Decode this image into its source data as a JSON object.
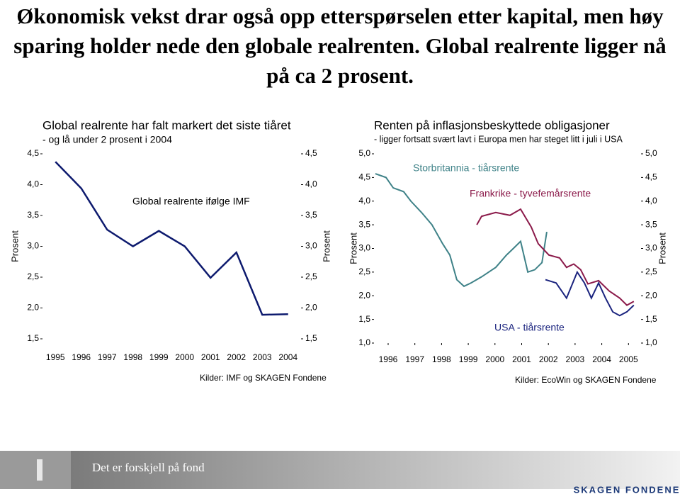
{
  "title": "Økonomisk vekst drar også opp etterspørselen etter kapital, men høy sparing holder nede den globale realrenten. Global realrente ligger nå på ca 2 prosent.",
  "chart_data": [
    {
      "type": "line",
      "title": "Global realrente har falt markert det siste tiåret",
      "subtitle": "- og lå under 2 prosent i 2004",
      "annotation": "Global realrente ifølge IMF",
      "source": "Kilder: IMF og SKAGEN Fondene",
      "ylabel": "Prosent",
      "y2label": "Prosent",
      "categories": [
        "1995",
        "1996",
        "1997",
        "1998",
        "1999",
        "2000",
        "2001",
        "2002",
        "2003",
        "2004"
      ],
      "values": [
        4.37,
        3.94,
        3.27,
        3.0,
        3.25,
        3.0,
        2.49,
        2.9,
        1.89,
        1.9
      ],
      "color": "#0d1a6e",
      "ylim": [
        1.5,
        4.5
      ],
      "yticks": [
        {
          "value": 1.5,
          "label": "1,5"
        },
        {
          "value": 2.0,
          "label": "2,0"
        },
        {
          "value": 2.5,
          "label": "2,5"
        },
        {
          "value": 3.0,
          "label": "3,0"
        },
        {
          "value": 3.5,
          "label": "3,5"
        },
        {
          "value": 4.0,
          "label": "4,0"
        },
        {
          "value": 4.5,
          "label": "4,5"
        }
      ],
      "y2lim": [
        1.5,
        4.5
      ],
      "y2ticks": [
        {
          "value": 1.5,
          "label": "1,5"
        },
        {
          "value": 2.0,
          "label": "2,0"
        },
        {
          "value": 2.5,
          "label": "2,5"
        },
        {
          "value": 3.0,
          "label": "3,0"
        },
        {
          "value": 3.5,
          "label": "3,5"
        },
        {
          "value": 4.0,
          "label": "4,0"
        },
        {
          "value": 4.5,
          "label": "4,5"
        }
      ]
    },
    {
      "type": "line",
      "title": "Renten på inflasjonsbeskyttede obligasjoner",
      "subtitle": "- ligger fortsatt svært lavt i Europa men har steget litt i juli i USA",
      "source": "Kilder: EcoWin og SKAGEN Fondene",
      "ylabel": "Prosent",
      "y2label": "Prosent",
      "xlim": [
        1995.47,
        2005.47
      ],
      "xticks": [
        1996,
        1997,
        1998,
        1999,
        2000,
        2001,
        2002,
        2003,
        2004,
        2005
      ],
      "ylim": [
        1.0,
        5.0
      ],
      "yticks": [
        {
          "value": 1.0,
          "label": "1,0"
        },
        {
          "value": 1.5,
          "label": "1,5"
        },
        {
          "value": 2.0,
          "label": "2,0"
        },
        {
          "value": 2.5,
          "label": "2,5"
        },
        {
          "value": 3.0,
          "label": "3,0"
        },
        {
          "value": 3.5,
          "label": "3,5"
        },
        {
          "value": 4.0,
          "label": "4,0"
        },
        {
          "value": 4.5,
          "label": "4,5"
        },
        {
          "value": 5.0,
          "label": "5,0"
        }
      ],
      "y2lim": [
        1.0,
        5.0
      ],
      "y2ticks": [
        {
          "value": 1.0,
          "label": "1,0"
        },
        {
          "value": 1.5,
          "label": "1,5"
        },
        {
          "value": 2.0,
          "label": "2,0"
        },
        {
          "value": 2.5,
          "label": "2,5"
        },
        {
          "value": 3.0,
          "label": "3,0"
        },
        {
          "value": 3.5,
          "label": "3,5"
        },
        {
          "value": 4.0,
          "label": "4,0"
        },
        {
          "value": 4.5,
          "label": "4,5"
        },
        {
          "value": 5.0,
          "label": "5,0"
        }
      ],
      "series": [
        {
          "name": "Storbritannia - tiårsrente",
          "color": "#3f8288",
          "x": [
            1995.52,
            1995.92,
            1996.19,
            1996.58,
            1996.85,
            1997.25,
            1997.64,
            1998.04,
            1998.31,
            1998.57,
            1998.84,
            1999.1,
            1999.5,
            2000.03,
            2000.43,
            2000.69,
            2000.96,
            2001.23,
            2001.49,
            2001.76,
            2001.94
          ],
          "values": [
            4.58,
            4.5,
            4.28,
            4.2,
            4.0,
            3.76,
            3.5,
            3.1,
            2.86,
            2.34,
            2.2,
            2.27,
            2.4,
            2.6,
            2.86,
            3.0,
            3.15,
            2.5,
            2.55,
            2.7,
            3.35
          ]
        },
        {
          "name": "Frankrike - tyvefemårsrente",
          "color": "#8b1a4a",
          "x": [
            1999.32,
            1999.5,
            2000.03,
            2000.56,
            2000.96,
            2001.36,
            2001.62,
            2002.02,
            2002.42,
            2002.68,
            2002.95,
            2003.21,
            2003.48,
            2003.88,
            2004.28,
            2004.67,
            2004.94,
            2005.2
          ],
          "values": [
            3.5,
            3.68,
            3.76,
            3.7,
            3.83,
            3.45,
            3.1,
            2.86,
            2.8,
            2.6,
            2.67,
            2.55,
            2.25,
            2.32,
            2.1,
            1.95,
            1.8,
            1.88
          ]
        },
        {
          "name": "USA - tiårsrente",
          "color": "#1a237e",
          "x": [
            2001.89,
            2002.29,
            2002.68,
            2003.08,
            2003.35,
            2003.61,
            2003.88,
            2004.14,
            2004.41,
            2004.67,
            2004.94,
            2005.2
          ],
          "values": [
            2.34,
            2.27,
            1.95,
            2.5,
            2.27,
            1.95,
            2.27,
            1.95,
            1.66,
            1.58,
            1.66,
            1.8
          ]
        }
      ]
    }
  ],
  "footer": {
    "text": "Det er forskjell på fond",
    "logo": "SKAGEN FONDENE"
  }
}
